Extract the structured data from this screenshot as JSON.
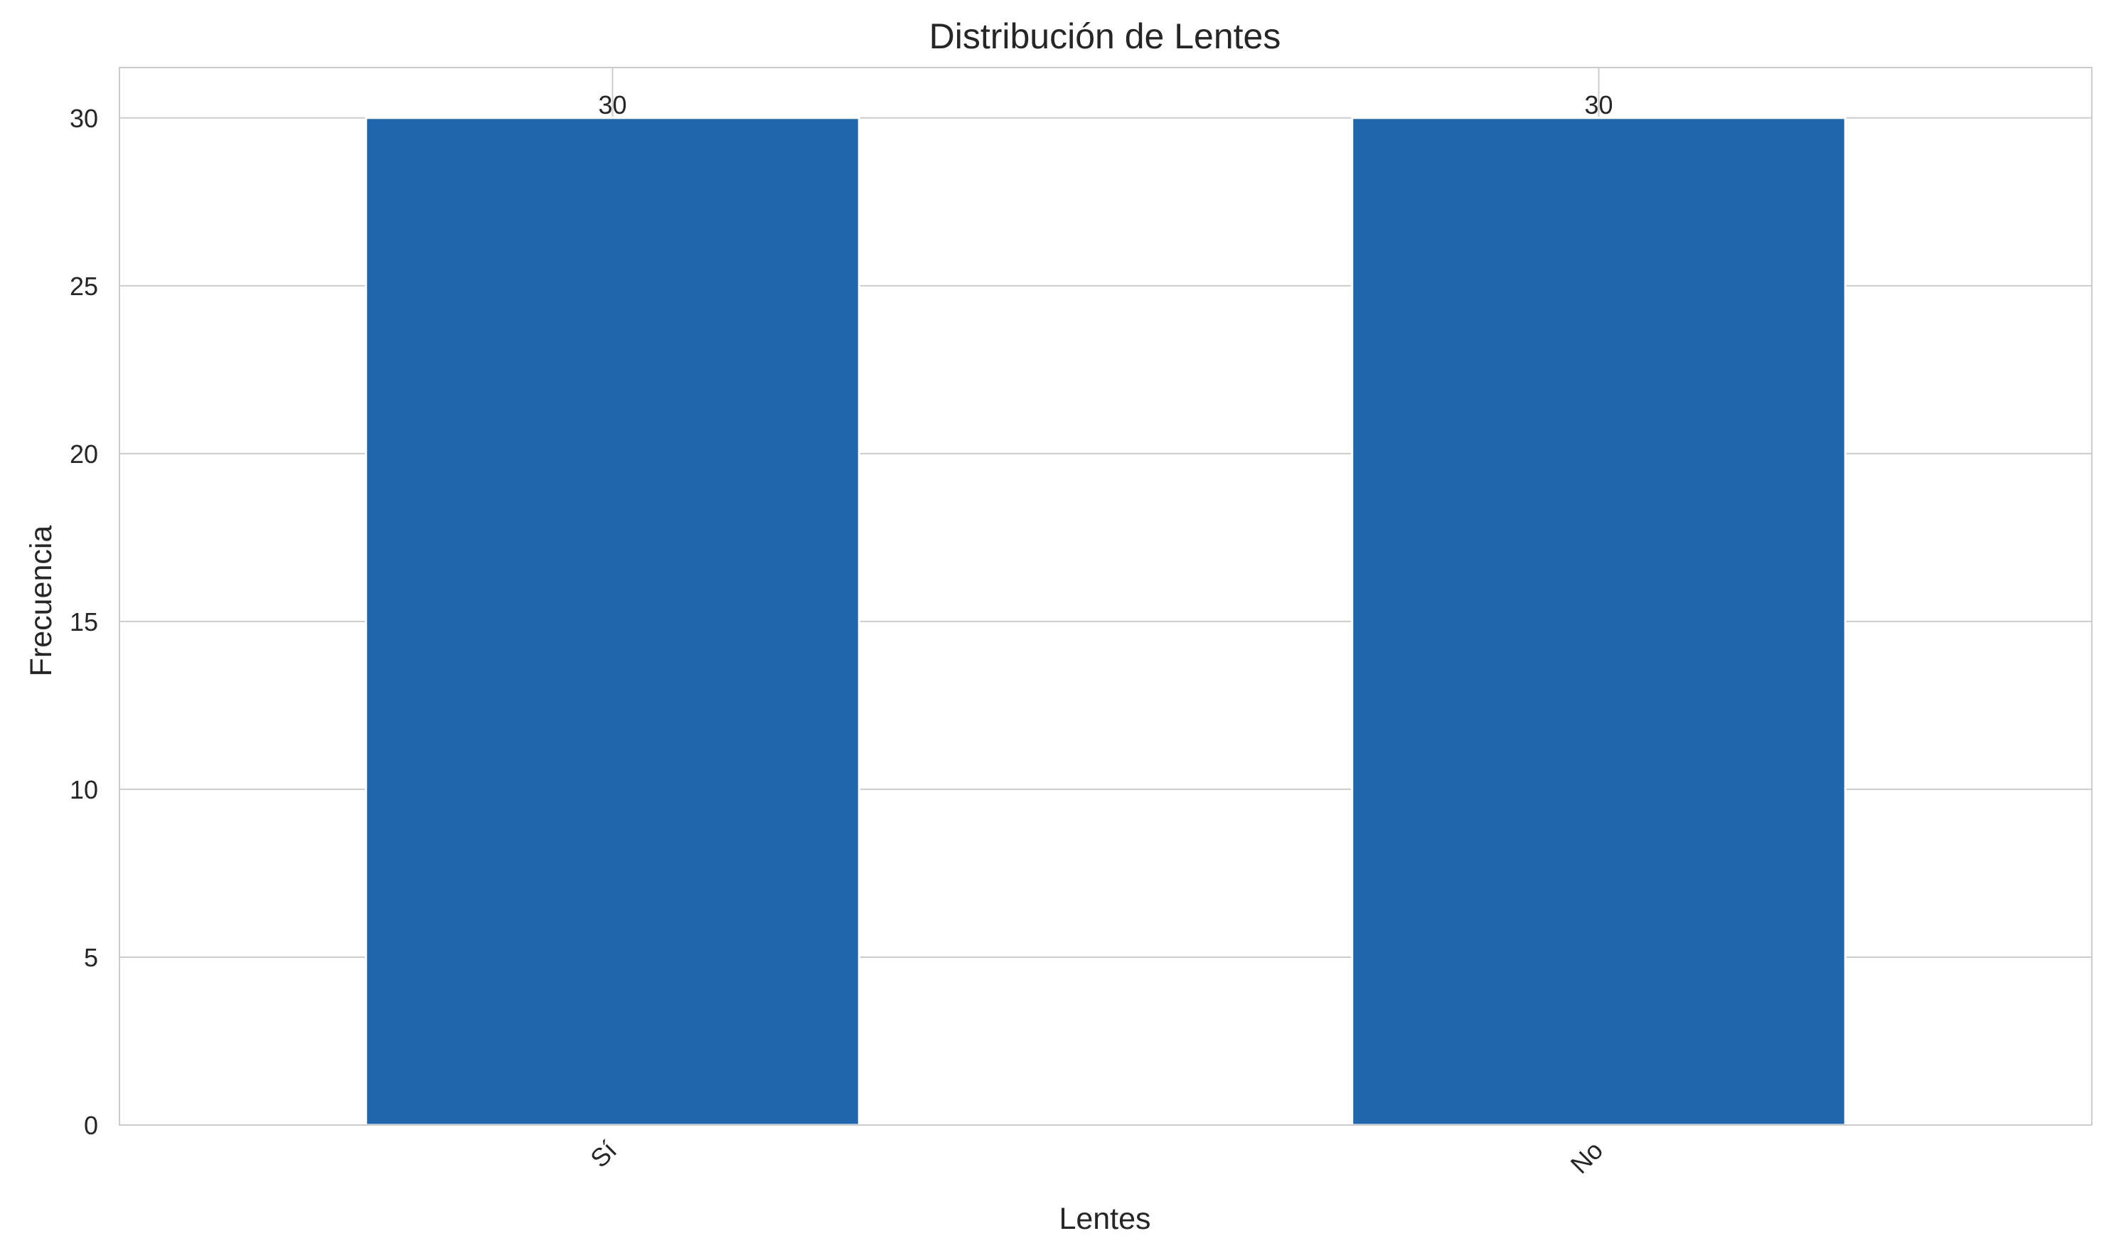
{
  "chart_data": {
    "type": "bar",
    "title": "Distribución de Lentes",
    "xlabel": "Lentes",
    "ylabel": "Frecuencia",
    "categories": [
      "Sí",
      "No"
    ],
    "values": [
      30,
      30
    ],
    "data_labels": [
      "30",
      "30"
    ],
    "ylim": [
      0,
      31.5
    ],
    "yticks": [
      0,
      5,
      10,
      15,
      20,
      25,
      30
    ],
    "ytick_labels": [
      "0",
      "5",
      "10",
      "15",
      "20",
      "25",
      "30"
    ],
    "grid": true,
    "legend": "none",
    "bar_color": "#2166ac"
  }
}
